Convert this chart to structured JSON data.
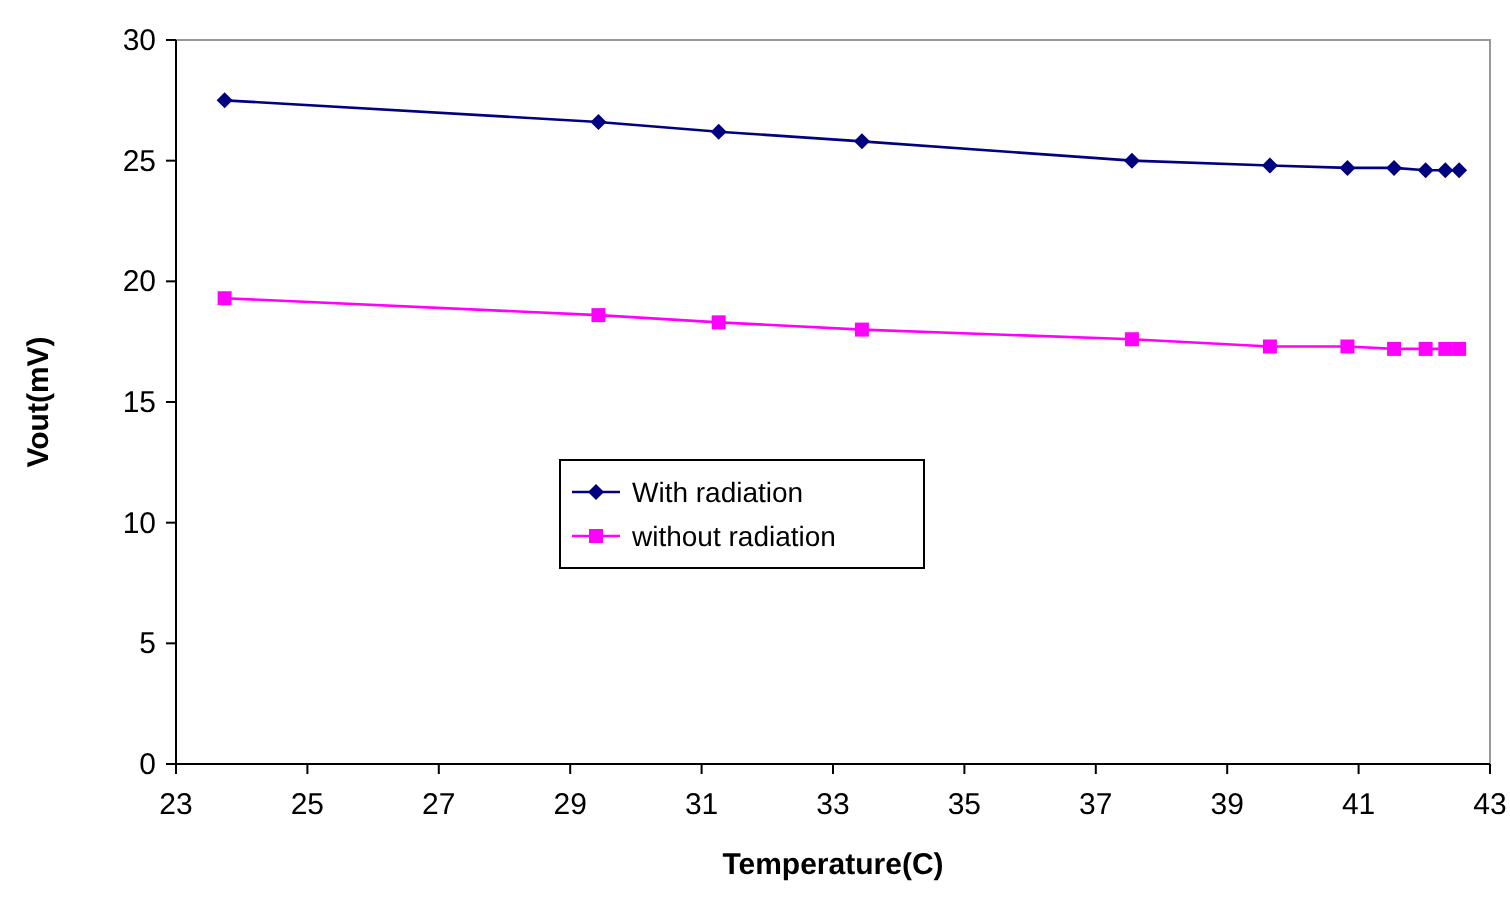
{
  "chart_data": {
    "type": "line",
    "xlabel": "Temperature(C)",
    "ylabel": "Vout(mV)",
    "x": [
      23.74,
      29.43,
      31.26,
      33.44,
      37.55,
      39.65,
      40.83,
      41.54,
      42.02,
      42.32,
      42.53
    ],
    "series": [
      {
        "name": "With radiation",
        "color": "#000080",
        "marker": "diamond",
        "values": [
          27.5,
          26.6,
          26.2,
          25.8,
          25.0,
          24.8,
          24.7,
          24.7,
          24.6,
          24.6,
          24.6
        ]
      },
      {
        "name": "without radiation",
        "color": "#ff00ff",
        "marker": "square",
        "values": [
          19.3,
          18.6,
          18.3,
          18.0,
          17.6,
          17.3,
          17.3,
          17.2,
          17.2,
          17.2,
          17.2
        ]
      }
    ],
    "xlim": [
      23,
      43
    ],
    "xticks": [
      23,
      25,
      27,
      29,
      31,
      33,
      35,
      37,
      39,
      41,
      43
    ],
    "ylim": [
      0,
      30
    ],
    "yticks": [
      0,
      5,
      10,
      15,
      20,
      25,
      30
    ],
    "grid": false,
    "legend": "center",
    "line_style": "solid"
  }
}
